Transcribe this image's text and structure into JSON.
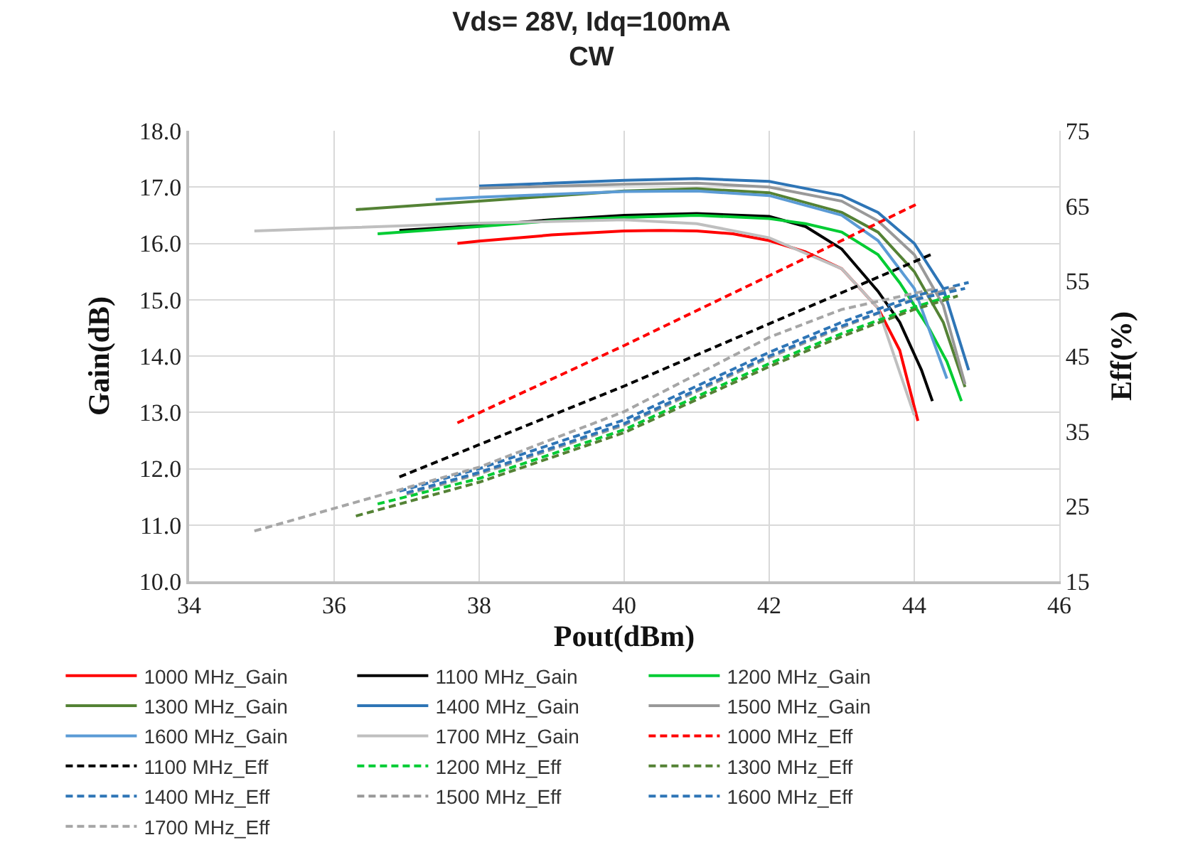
{
  "chart_data": {
    "type": "line",
    "title": "Vds= 28V, Idq=100mA",
    "subtitle": "CW",
    "xlabel": "Pout(dBm)",
    "ylabel": "Gain(dB)",
    "y2label": "Eff(%)",
    "xlim": [
      34,
      46
    ],
    "xticks": [
      34,
      36,
      38,
      40,
      42,
      44,
      46
    ],
    "ylim": [
      10,
      18
    ],
    "yticks": [
      {
        "value": 10,
        "label": "10.0"
      },
      {
        "value": 11,
        "label": "11.0"
      },
      {
        "value": 12,
        "label": "12.0"
      },
      {
        "value": 13,
        "label": "13.0"
      },
      {
        "value": 14,
        "label": "14.0"
      },
      {
        "value": 15,
        "label": "15.0"
      },
      {
        "value": 16,
        "label": "16.0"
      },
      {
        "value": 17,
        "label": "17.0"
      },
      {
        "value": 18,
        "label": "18.0"
      }
    ],
    "y2lim": [
      15,
      75
    ],
    "y2ticks": [
      15,
      25,
      35,
      45,
      55,
      65,
      75
    ],
    "grid": true,
    "legend": "bottom",
    "marker": "none",
    "series": [
      {
        "name": "1000 MHz_Gain",
        "color": "#ff0000",
        "line_style": "solid",
        "x": [
          37.7,
          38,
          39,
          40,
          40.5,
          41,
          41.5,
          42,
          42.5,
          43,
          43.5,
          43.8,
          44.05
        ],
        "values": [
          16.0,
          16.04,
          16.15,
          16.22,
          16.23,
          16.22,
          16.17,
          16.05,
          15.85,
          15.55,
          14.85,
          14.1,
          12.85
        ]
      },
      {
        "name": "1100 MHz_Gain",
        "color": "#000000",
        "line_style": "solid",
        "x": [
          36.9,
          38,
          39,
          40,
          41,
          42,
          42.5,
          43,
          43.5,
          43.8,
          44.1,
          44.25
        ],
        "values": [
          16.23,
          16.32,
          16.42,
          16.5,
          16.53,
          16.48,
          16.3,
          15.9,
          15.15,
          14.6,
          13.75,
          13.2
        ]
      },
      {
        "name": "1200 MHz_Gain",
        "color": "#00cc33",
        "line_style": "solid",
        "x": [
          36.6,
          38,
          39,
          40,
          41,
          42,
          42.5,
          43,
          43.5,
          43.8,
          44.2,
          44.45,
          44.65
        ],
        "values": [
          16.17,
          16.3,
          16.4,
          16.46,
          16.5,
          16.44,
          16.35,
          16.2,
          15.8,
          15.3,
          14.5,
          13.9,
          13.2
        ]
      },
      {
        "name": "1300 MHz_Gain",
        "color": "#548235",
        "line_style": "solid",
        "x": [
          36.3,
          38,
          40,
          41,
          42,
          43,
          43.5,
          44,
          44.4,
          44.7
        ],
        "values": [
          16.6,
          16.75,
          16.93,
          16.97,
          16.9,
          16.55,
          16.2,
          15.5,
          14.6,
          13.45
        ]
      },
      {
        "name": "1400 MHz_Gain",
        "color": "#2e75b6",
        "line_style": "solid",
        "x": [
          38.0,
          40,
          41,
          42,
          43,
          43.5,
          44,
          44.4,
          44.75
        ],
        "values": [
          17.02,
          17.12,
          17.15,
          17.1,
          16.85,
          16.55,
          16.0,
          15.2,
          13.75
        ]
      },
      {
        "name": "1500 MHz_Gain",
        "color": "#999999",
        "line_style": "solid",
        "x": [
          38.0,
          40,
          41,
          42,
          43,
          43.5,
          44,
          44.4,
          44.7
        ],
        "values": [
          16.98,
          17.05,
          17.07,
          17.0,
          16.75,
          16.4,
          15.8,
          14.9,
          13.5
        ]
      },
      {
        "name": "1600 MHz_Gain",
        "color": "#5b9bd5",
        "line_style": "solid",
        "x": [
          37.4,
          38,
          40,
          41,
          42,
          43,
          43.5,
          44,
          44.45
        ],
        "values": [
          16.78,
          16.82,
          16.92,
          16.93,
          16.85,
          16.5,
          16.05,
          15.2,
          13.6
        ]
      },
      {
        "name": "1700 MHz_Gain",
        "color": "#bfbfbf",
        "line_style": "solid",
        "x": [
          34.9,
          36,
          38,
          40,
          41,
          42,
          43,
          43.5,
          44.0
        ],
        "values": [
          16.22,
          16.27,
          16.36,
          16.42,
          16.35,
          16.1,
          15.55,
          14.85,
          12.95
        ]
      },
      {
        "name": "1000 MHz_Eff",
        "color": "#ff0000",
        "line_style": "dashed",
        "axis": "y2",
        "x": [
          37.7,
          40,
          42,
          44.05
        ],
        "values": [
          36.1,
          46.4,
          55.7,
          65.3
        ]
      },
      {
        "name": "1100 MHz_Eff",
        "color": "#000000",
        "line_style": "dashed",
        "axis": "y2",
        "x": [
          36.9,
          38,
          40,
          42,
          44.25
        ],
        "values": [
          28.9,
          33.2,
          41.0,
          49.3,
          58.6
        ]
      },
      {
        "name": "1200 MHz_Eff",
        "color": "#00cc33",
        "line_style": "dashed",
        "axis": "y2",
        "x": [
          36.6,
          38,
          40,
          42,
          43,
          44,
          44.5
        ],
        "values": [
          25.3,
          28.7,
          35.2,
          44.0,
          48.0,
          51.5,
          53.0
        ]
      },
      {
        "name": "1300 MHz_Eff",
        "color": "#548235",
        "line_style": "dashed",
        "axis": "y2",
        "x": [
          36.3,
          38,
          40,
          42,
          43,
          44,
          44.6
        ],
        "values": [
          23.7,
          28.2,
          34.8,
          43.6,
          47.6,
          51.2,
          53.0
        ]
      },
      {
        "name": "1400 MHz_Eff",
        "color": "#2e75b6",
        "line_style": "dashed",
        "axis": "y2",
        "x": [
          36.9,
          38,
          40,
          42,
          43,
          44,
          44.75
        ],
        "values": [
          27.0,
          30.0,
          36.5,
          45.5,
          49.5,
          53.0,
          54.8
        ]
      },
      {
        "name": "1500 MHz_Eff",
        "color": "#999999",
        "line_style": "dashed",
        "axis": "y2",
        "x": [
          37.0,
          38,
          40,
          42,
          43,
          44,
          44.6
        ],
        "values": [
          26.6,
          29.3,
          35.8,
          44.8,
          48.8,
          52.6,
          54.2
        ]
      },
      {
        "name": "1600 MHz_Eff",
        "color": "#2e75b6",
        "line_style": "dashed",
        "axis": "y2",
        "x": [
          37.0,
          38,
          40,
          42,
          43,
          44,
          44.7
        ],
        "values": [
          26.8,
          29.5,
          36.0,
          45.0,
          49.0,
          52.5,
          54.0
        ]
      },
      {
        "name": "1700 MHz_Eff",
        "color": "#a6a6a6",
        "line_style": "dashed",
        "axis": "y2",
        "x": [
          34.9,
          38,
          40,
          42,
          43,
          44.3
        ],
        "values": [
          21.7,
          30.2,
          37.6,
          47.5,
          51.2,
          54.0
        ]
      }
    ]
  }
}
